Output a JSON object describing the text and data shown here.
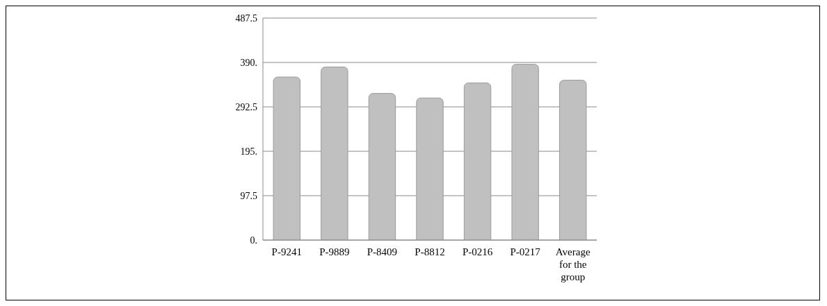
{
  "chart_data": {
    "type": "bar",
    "categories": [
      "P-9241",
      "P-9889",
      "P-8409",
      "P-8812",
      "P-0216",
      "P-0217",
      "Average for the group"
    ],
    "values": [
      358,
      380,
      322,
      312,
      345,
      386,
      351
    ],
    "color": "#c0c0c0",
    "ylim": [
      0,
      487.5
    ],
    "yticks": [
      {
        "value": 0,
        "label": "0."
      },
      {
        "value": 97.5,
        "label": "97.5"
      },
      {
        "value": 195,
        "label": "195."
      },
      {
        "value": 292.5,
        "label": "292.5"
      },
      {
        "value": 390,
        "label": "390."
      },
      {
        "value": 487.5,
        "label": "487.5"
      }
    ],
    "grid": "y",
    "legend": false
  }
}
